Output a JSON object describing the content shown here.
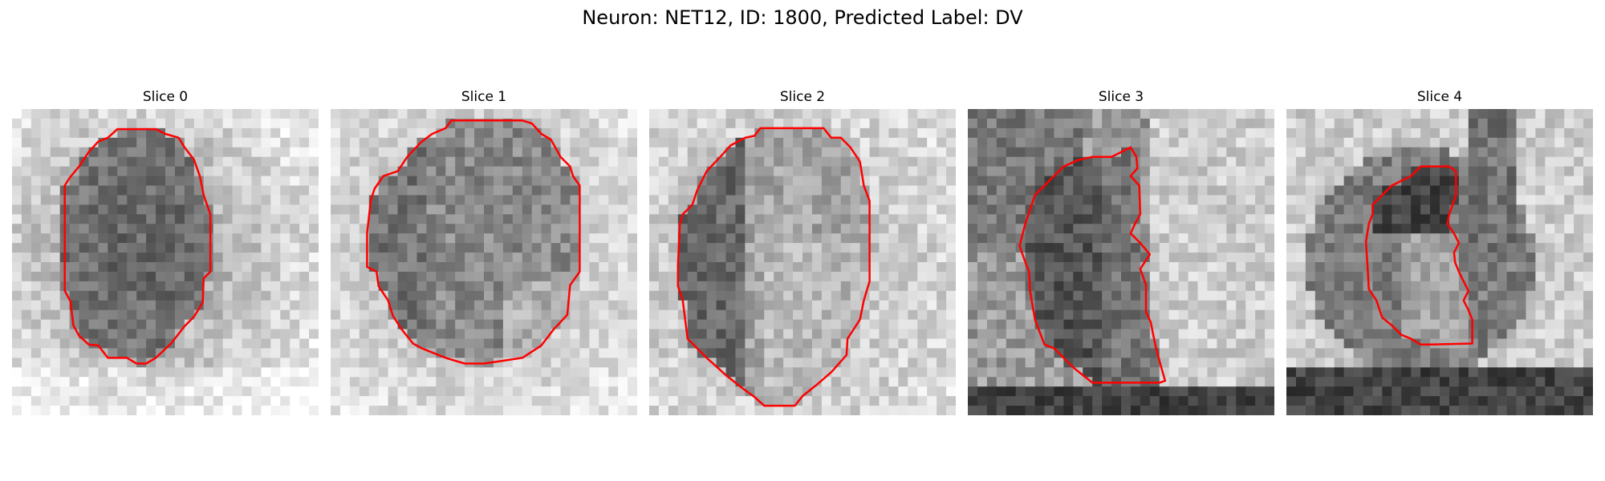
{
  "figure": {
    "suptitle": "Neuron: NET12, ID: 1800, Predicted Label: DV",
    "outline_color": "#ff0000"
  },
  "panels": [
    {
      "title": "Slice 0"
    },
    {
      "title": "Slice 1"
    },
    {
      "title": "Slice 2"
    },
    {
      "title": "Slice 3"
    },
    {
      "title": "Slice 4"
    }
  ]
}
